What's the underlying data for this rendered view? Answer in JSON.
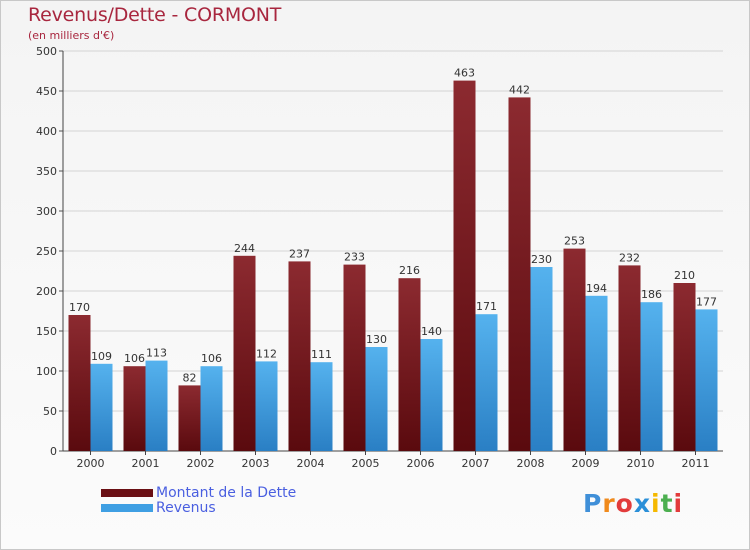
{
  "title": "Revenus/Dette - CORMONT",
  "subtitle": "(en milliers d'€)",
  "chart_data": {
    "type": "bar",
    "title": "Revenus/Dette - CORMONT",
    "ylabel": "(en milliers d'€)",
    "xlabel": "",
    "categories": [
      "2000",
      "2001",
      "2002",
      "2003",
      "2004",
      "2005",
      "2006",
      "2007",
      "2008",
      "2009",
      "2010",
      "2011"
    ],
    "series": [
      {
        "name": "Montant de la Dette",
        "color": "#7a1a1f",
        "values": [
          170,
          106,
          82,
          244,
          237,
          233,
          216,
          463,
          442,
          253,
          232,
          210
        ]
      },
      {
        "name": "Revenus",
        "color": "#3f9fe3",
        "values": [
          109,
          113,
          106,
          112,
          111,
          130,
          140,
          171,
          230,
          194,
          186,
          177
        ]
      }
    ],
    "ylim": [
      0,
      500
    ],
    "yticks": [
      0,
      50,
      100,
      150,
      200,
      250,
      300,
      350,
      400,
      450,
      500
    ],
    "grid": true,
    "legend": "bottom-left"
  },
  "legend": {
    "items": [
      {
        "label": "Montant de la Dette",
        "color": "#6a0f14"
      },
      {
        "label": "Revenus",
        "color": "#3f9fe3"
      }
    ]
  },
  "logo": {
    "text": "Proxiti",
    "letters": [
      "P",
      "r",
      "o",
      "x",
      "i",
      "t",
      "i"
    ],
    "colors": [
      "#3f8fd8",
      "#f08a1c",
      "#e23b3b",
      "#2a8fd8",
      "#f5b800",
      "#4caf50",
      "#e23b3b"
    ]
  }
}
